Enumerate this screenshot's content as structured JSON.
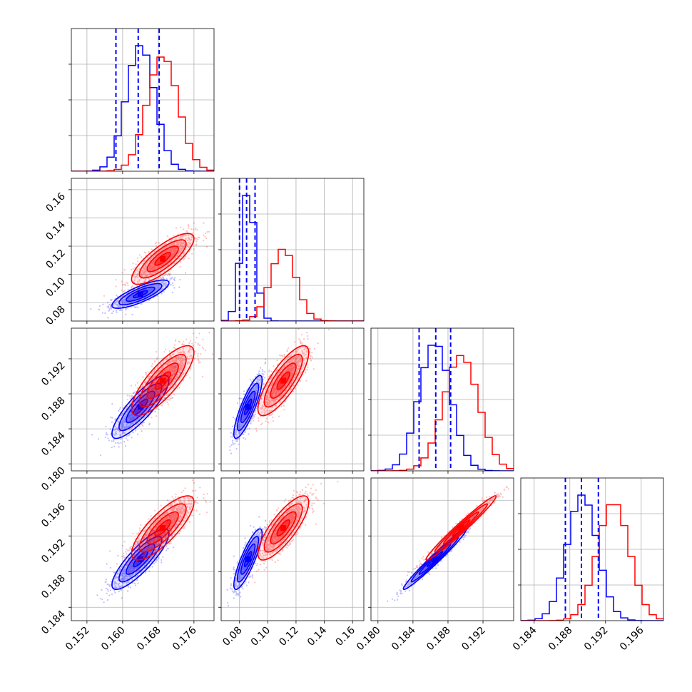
{
  "chart_data": {
    "type": "corner",
    "title": "",
    "parameters": [
      "",
      "",
      "",
      ""
    ],
    "grid": true,
    "series": [
      {
        "color": "#0000ff",
        "mean": [
          0.164,
          0.086,
          0.1865,
          0.1894
        ],
        "sd": [
          0.0032,
          0.005,
          0.0018,
          0.0017
        ],
        "corr": [
          [
            1,
            0.8,
            0.85,
            0.85
          ],
          [
            0.8,
            1,
            0.85,
            0.85
          ],
          [
            0.85,
            0.85,
            1,
            0.98
          ],
          [
            0.85,
            0.85,
            0.98,
            1
          ]
        ],
        "quantile_lines": [
          [
            0.1585,
            0.1635,
            0.1682
          ],
          [
            0.08,
            0.085,
            0.091
          ],
          [
            0.1847,
            0.1866,
            0.1883
          ],
          [
            0.1875,
            0.1893,
            0.1912
          ]
        ]
      },
      {
        "color": "#ff0000",
        "mean": [
          0.169,
          0.111,
          0.1895,
          0.1929
        ],
        "sd": [
          0.0035,
          0.009,
          0.002,
          0.0018
        ],
        "corr": [
          [
            1,
            0.8,
            0.8,
            0.8
          ],
          [
            0.8,
            1,
            0.8,
            0.8
          ],
          [
            0.8,
            0.8,
            1,
            0.98
          ],
          [
            0.8,
            0.8,
            0.98,
            1
          ]
        ]
      }
    ],
    "axes": [
      {
        "lim": [
          0.1485,
          0.1805
        ],
        "ticks": [
          0.152,
          0.16,
          0.168,
          0.176
        ],
        "tick_labels": [
          "0.152",
          "0.160",
          "0.168",
          "0.176"
        ]
      },
      {
        "lim": [
          0.067,
          0.168
        ],
        "ticks": [
          0.08,
          0.1,
          0.12,
          0.14,
          0.16
        ],
        "tick_labels": [
          "0.08",
          "0.10",
          "0.12",
          "0.14",
          "0.16"
        ]
      },
      {
        "lim": [
          0.1792,
          0.1955
        ],
        "ticks": [
          0.18,
          0.184,
          0.188,
          0.192
        ],
        "tick_labels": [
          "0.180",
          "0.184",
          "0.188",
          "0.192"
        ]
      },
      {
        "lim": [
          0.1825,
          0.1985
        ],
        "ticks": [
          0.184,
          0.188,
          0.192,
          0.196
        ],
        "tick_labels": [
          "0.184",
          "0.188",
          "0.192",
          "0.196"
        ]
      }
    ]
  }
}
